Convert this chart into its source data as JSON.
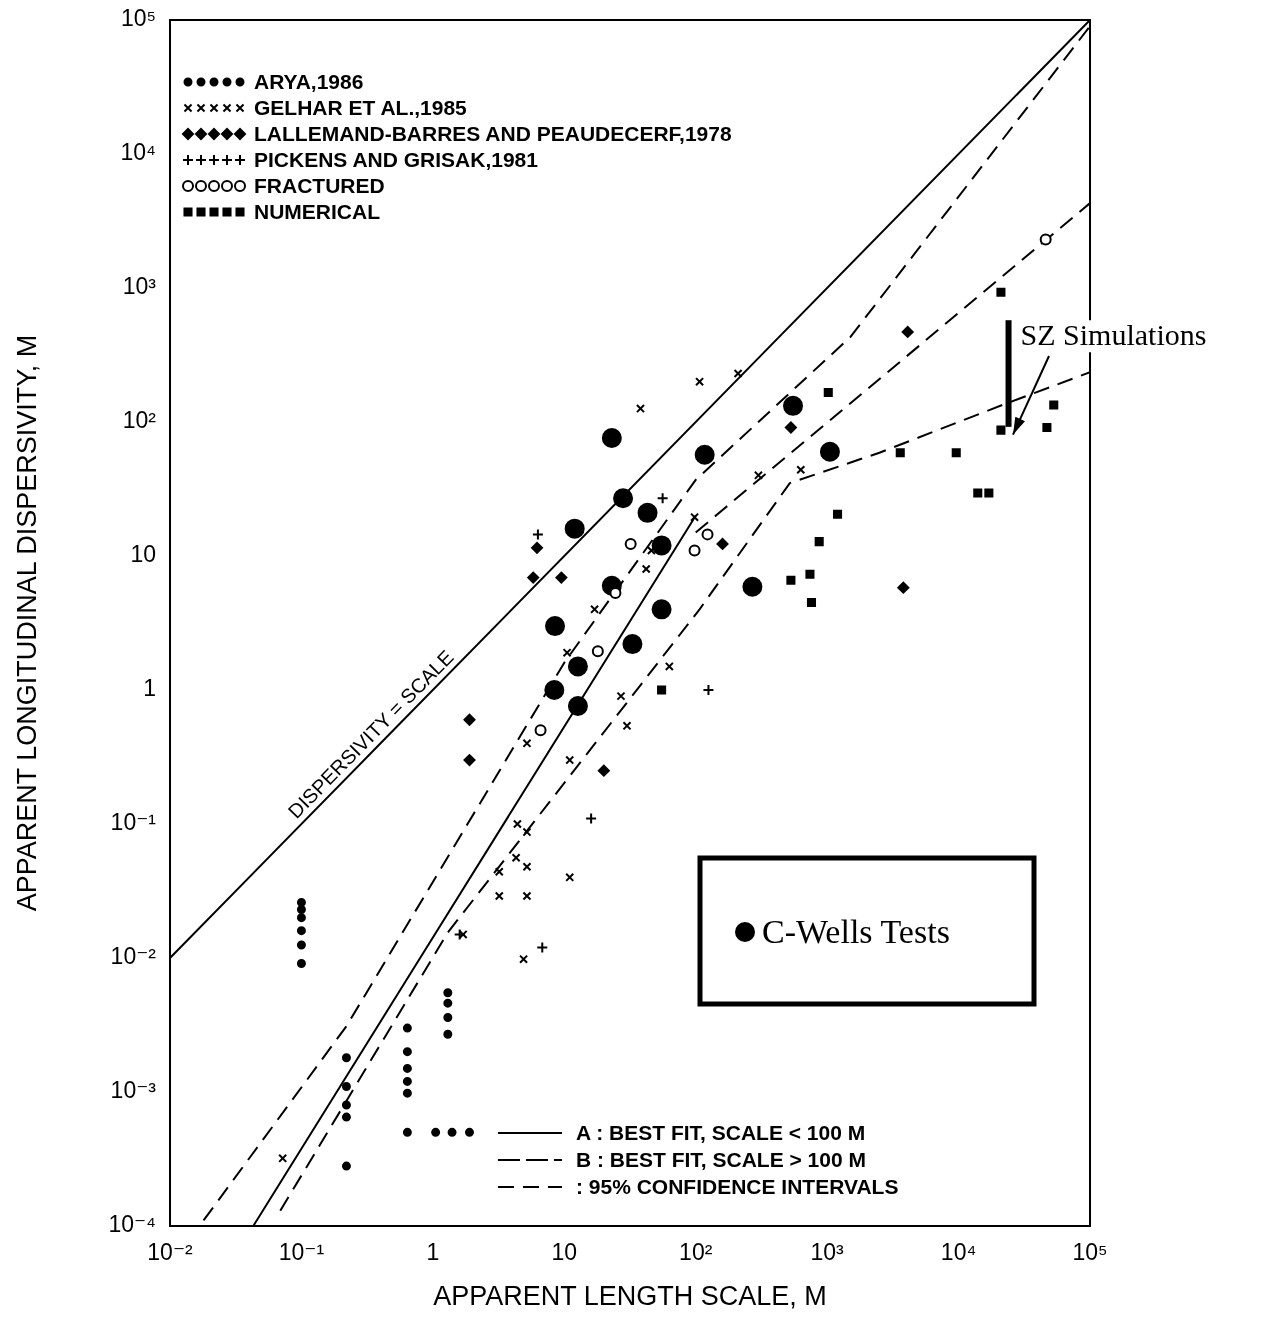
{
  "chart_data": {
    "type": "scatter",
    "xlabel": "APPARENT LENGTH SCALE, M",
    "ylabel": "APPARENT LONGITUDINAL DISPERSIVITY, M",
    "log": "xy",
    "grid": false,
    "legend": "left",
    "xlim": [
      0.01,
      100000
    ],
    "ylim": [
      0.0001,
      100000
    ],
    "xticks": [
      {
        "value": 0.01,
        "label": "10⁻²"
      },
      {
        "value": 0.1,
        "label": "10⁻¹"
      },
      1,
      10,
      {
        "value": 100,
        "label": "10²"
      },
      {
        "value": 1000,
        "label": "10³"
      },
      {
        "value": 10000,
        "label": "10⁴"
      },
      {
        "value": 100000,
        "label": "10⁵"
      }
    ],
    "yticks": [
      {
        "value": 0.0001,
        "label": "10⁻⁴"
      },
      {
        "value": 0.001,
        "label": "10⁻³"
      },
      {
        "value": 0.01,
        "label": "10⁻²"
      },
      {
        "value": 0.1,
        "label": "10⁻¹"
      },
      1,
      10,
      {
        "value": 100,
        "label": "10²"
      },
      {
        "value": 1000,
        "label": "10³"
      },
      {
        "value": 10000,
        "label": "10⁴"
      },
      {
        "value": 100000,
        "label": "10⁵"
      }
    ],
    "series": [
      {
        "name": "ARYA,1986",
        "type": "scatter",
        "marker": "circle",
        "color": "#000000",
        "x": [
          0.1,
          0.1,
          0.1,
          0.1,
          0.1,
          0.1,
          0.22,
          0.22,
          0.22,
          0.22,
          0.22,
          0.64,
          0.64,
          0.64,
          0.64,
          0.64,
          0.64,
          1.3,
          1.3,
          1.3,
          1.3,
          1.05,
          1.4,
          1.9
        ],
        "values": [
          0.026,
          0.023,
          0.02,
          0.016,
          0.0125,
          0.0091,
          0.0018,
          0.0011,
          0.0008,
          0.00065,
          0.00028,
          0.003,
          0.002,
          0.0015,
          0.0012,
          0.00098,
          0.0005,
          0.0055,
          0.0046,
          0.0036,
          0.0027,
          0.0005,
          0.0005,
          0.0005
        ]
      },
      {
        "name": "GELHAR ET AL.,1985",
        "type": "scatter",
        "marker": "cross",
        "color": "#000000",
        "x": [
          107,
          210,
          38,
          300,
          630,
          98,
          46,
          42,
          17,
          63,
          27,
          30,
          11,
          10.5,
          5.2,
          4.3,
          3.2,
          5.2,
          3.2,
          5.2,
          1.7,
          4.9,
          0.072,
          11,
          4.4,
          5.2
        ],
        "values": [
          200,
          230,
          126,
          40,
          44,
          19.5,
          11,
          8,
          4,
          1.5,
          0.9,
          0.54,
          0.3,
          1.9,
          0.087,
          0.056,
          0.044,
          0.048,
          0.029,
          0.029,
          0.015,
          0.0098,
          0.00032,
          0.04,
          0.1,
          0.4
        ]
      },
      {
        "name": "LALLEMAND-BARRES AND PEAUDECERF,1978",
        "type": "scatter",
        "marker": "diamond",
        "color": "#000000",
        "x": [
          1.9,
          1.9,
          6.2,
          5.8,
          20,
          4100,
          3800,
          530,
          9.5,
          160
        ],
        "values": [
          0.6,
          0.3,
          11.5,
          6.9,
          0.25,
          470,
          5.8,
          91,
          6.9,
          12.3
        ]
      },
      {
        "name": "PICKENS AND GRISAK,1981",
        "type": "scatter",
        "marker": "plus",
        "color": "#000000",
        "x": [
          6.3,
          16,
          6.8,
          1.6,
          125,
          56
        ],
        "values": [
          14.5,
          0.11,
          0.012,
          0.015,
          1,
          27
        ]
      },
      {
        "name": "FRACTURED",
        "type": "scatter",
        "marker": "circle",
        "color": "#000000",
        "x": [
          123,
          32,
          98,
          24.5,
          18,
          6.6,
          46000
        ],
        "values": [
          14.5,
          12.3,
          11,
          5.3,
          1.95,
          0.5,
          2300
        ]
      },
      {
        "name": "NUMERICAL",
        "type": "scatter",
        "marker": "square",
        "color": "#000000",
        "x": [
          1020,
          3600,
          9600,
          17000,
          14000,
          21000,
          47000,
          53000,
          1200,
          870,
          740,
          760,
          530,
          55,
          21000
        ],
        "values": [
          166,
          59,
          59,
          29.5,
          29.5,
          87,
          91,
          134,
          20.5,
          12.8,
          7.3,
          4.5,
          6.6,
          1,
          930
        ]
      },
      {
        "name": "C-Wells Tests",
        "type": "scatter",
        "marker": "circle",
        "color": "#000000",
        "x": [
          23,
          28,
          117,
          43,
          12,
          55,
          23,
          55,
          8.5,
          33,
          8.4,
          12.7,
          12.7,
          270,
          1050,
          550
        ],
        "values": [
          76,
          27,
          57,
          21,
          16,
          12,
          6,
          4,
          3,
          2.2,
          1,
          1.5,
          0.76,
          5.9,
          60,
          132
        ]
      },
      {
        "name": "DISPERSIVITY = SCALE",
        "type": "line",
        "line_style": "solid",
        "marker": "none",
        "color": "#000000",
        "x": [
          0.01,
          0.4,
          100000
        ],
        "values": [
          0.01,
          0.4,
          100000
        ]
      },
      {
        "name": "A : BEST FIT, SCALE < 100 M",
        "type": "line",
        "line_style": "solid",
        "marker": "none",
        "color": "#000000",
        "x": [
          0.043,
          0.8,
          100
        ],
        "values": [
          0.0001,
          0.01,
          20
        ]
      },
      {
        "name": "B : BEST FIT, SCALE > 100 M",
        "type": "line",
        "line_style": "dashed",
        "marker": "none",
        "color": "#000000",
        "x": [
          100,
          100000
        ],
        "values": [
          15,
          4300
        ]
      },
      {
        "name": ": 95% CONFIDENCE INTERVALS",
        "type": "line",
        "line_style": "dashed",
        "marker": "none",
        "color": "#000000",
        "x": [
          0.018,
          0.22,
          10,
          100,
          1500,
          100000
        ],
        "values": [
          0.00011,
          0.0031,
          1.6,
          37,
          430,
          90000
        ]
      },
      {
        "type": "line",
        "line_style": "dashed",
        "marker": "none",
        "color": "#000000",
        "x": [
          0.069,
          1.3,
          107,
          520,
          2500,
          22000,
          100000
        ],
        "values": [
          0.00013,
          0.0155,
          4,
          35,
          59,
          135,
          235
        ]
      },
      {
        "name": "SZ Simulations",
        "type": "line",
        "line_style": "solid",
        "marker": "none",
        "color": "#000000",
        "x": [
          24000,
          24000
        ],
        "values": [
          92,
          575
        ]
      }
    ]
  }
}
